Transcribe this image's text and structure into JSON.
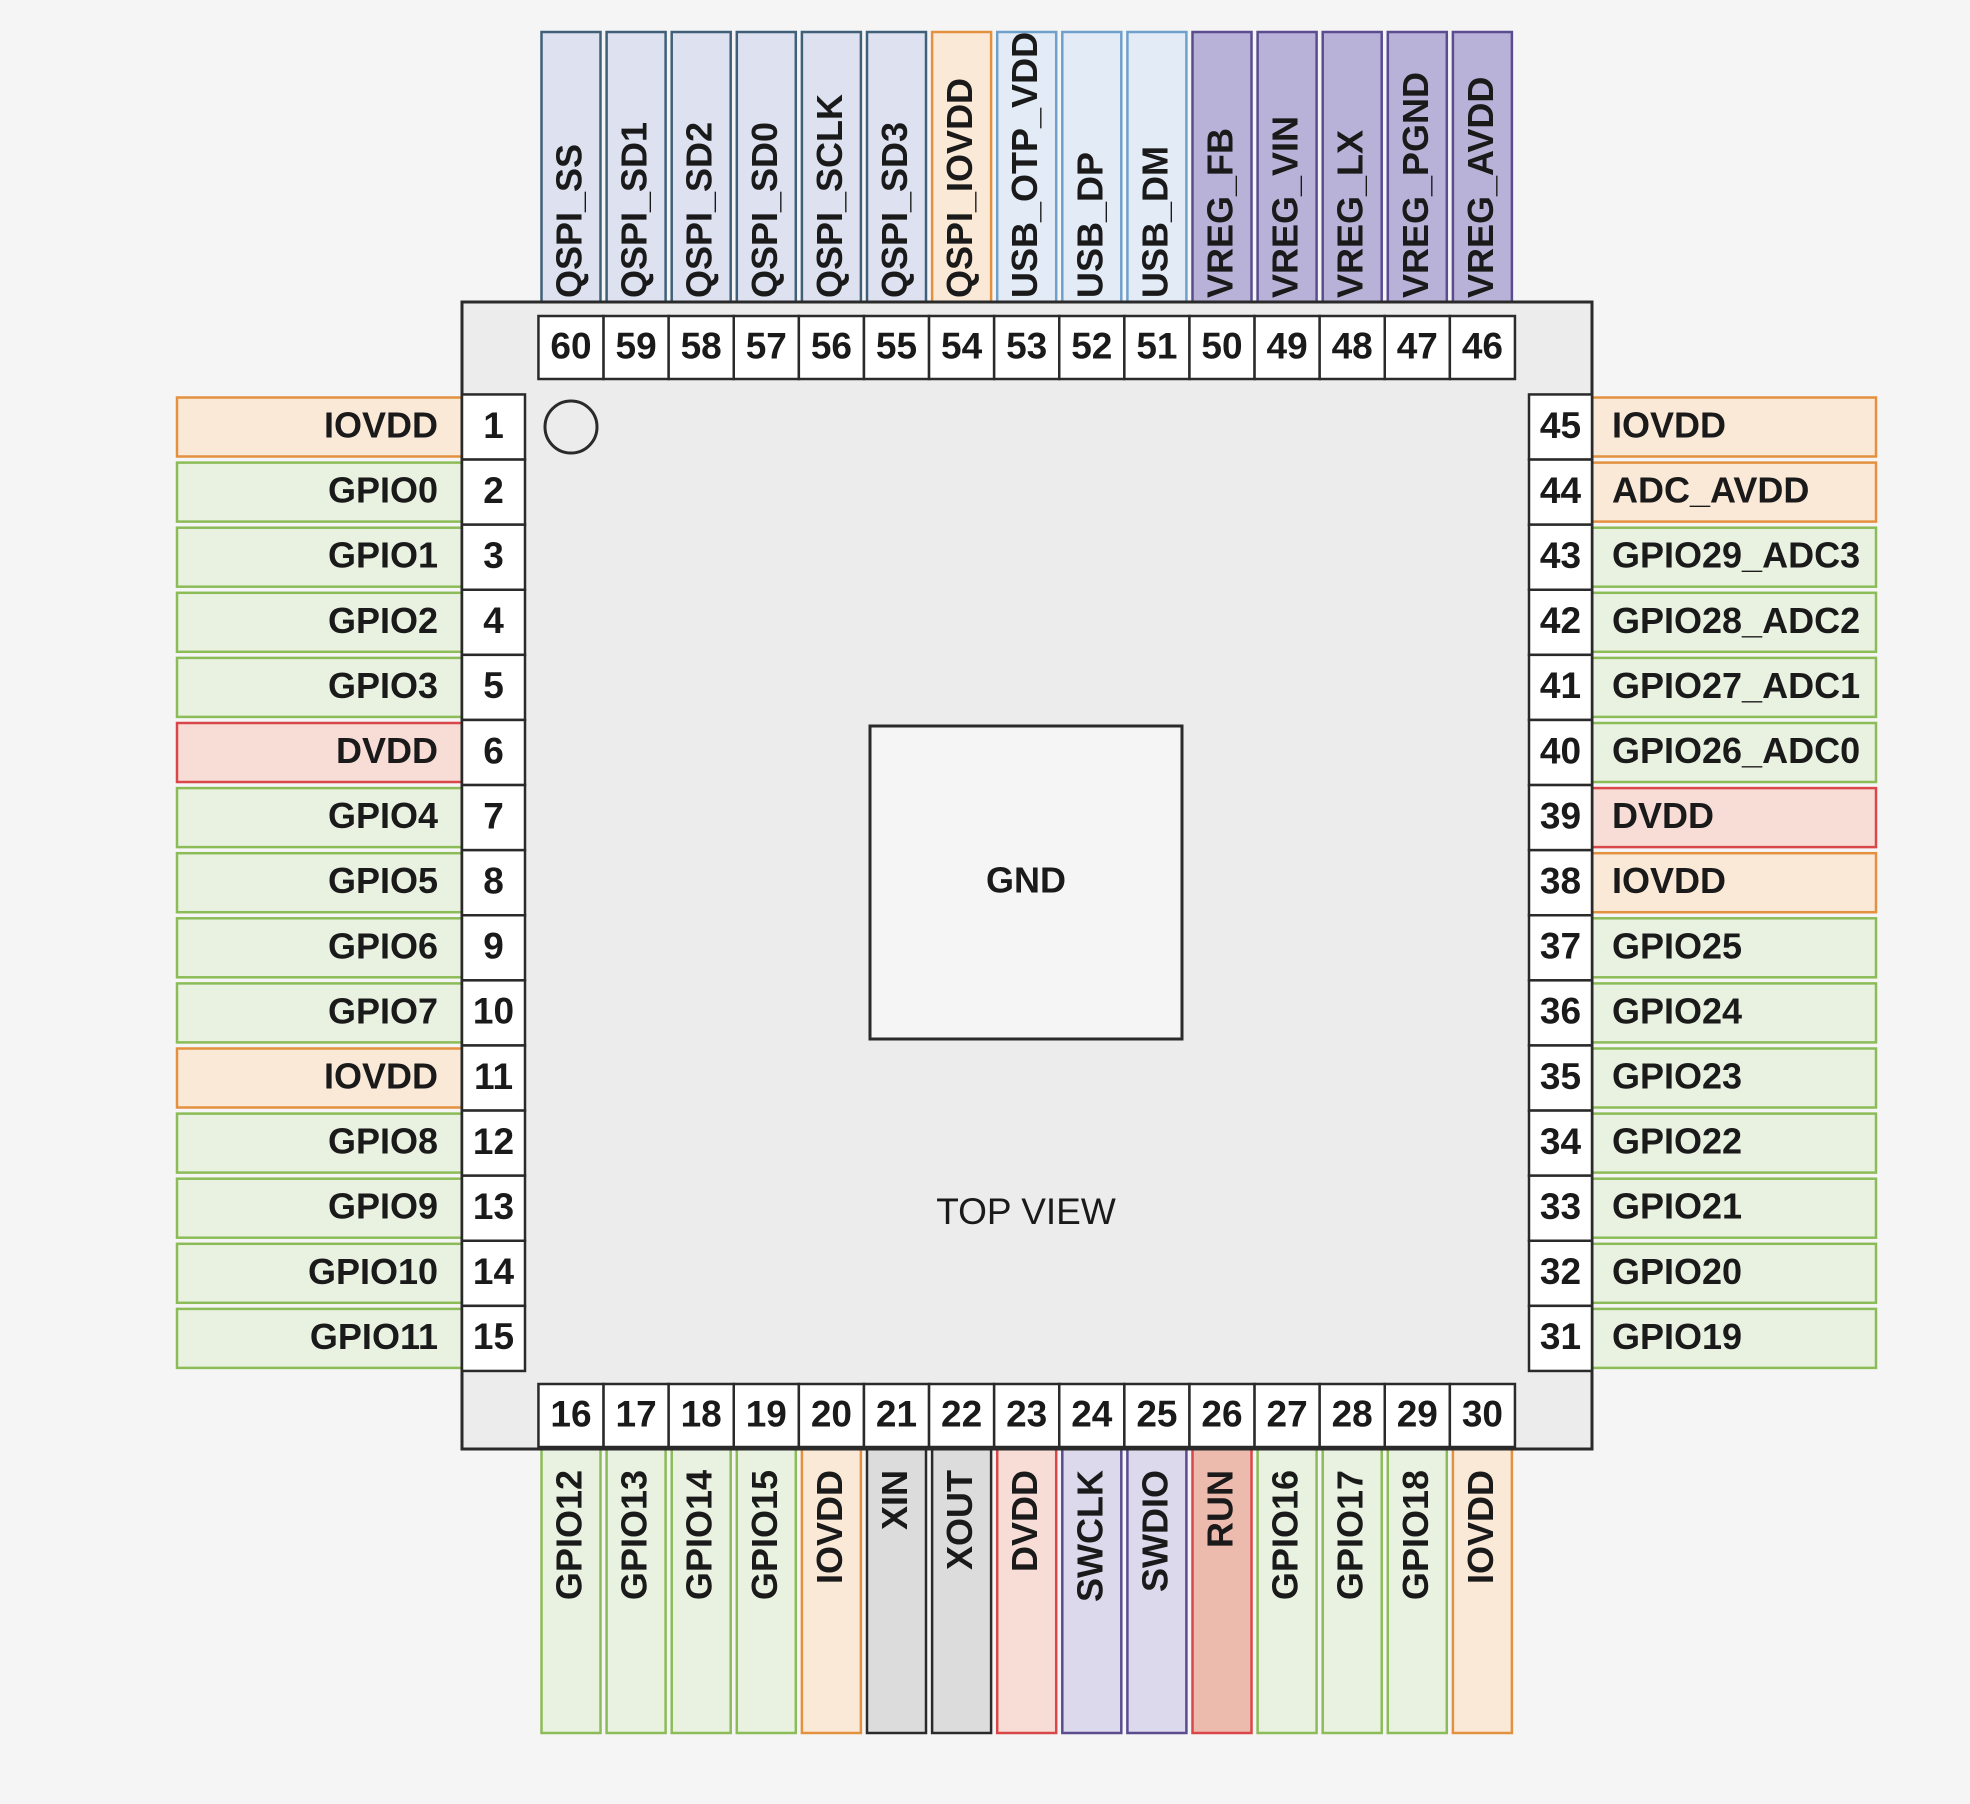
{
  "categories": {
    "qspi": {
      "fill": "#dde1f0",
      "stroke": "#3f6078"
    },
    "qspi_power": {
      "fill": "#fbe9d8",
      "stroke": "#e3913f"
    },
    "usb": {
      "fill": "#e3ebf6",
      "stroke": "#6fa0cc"
    },
    "vreg": {
      "fill": "#b9b2d8",
      "stroke": "#5a4c8f"
    },
    "gpio": {
      "fill": "#e9f2e1",
      "stroke": "#8cbc58"
    },
    "iovdd": {
      "fill": "#fbe9d8",
      "stroke": "#e3913f"
    },
    "dvdd": {
      "fill": "#f8ddd6",
      "stroke": "#d9474a"
    },
    "xtal": {
      "fill": "#dcdcdc",
      "stroke": "#2a2a2a"
    },
    "swd": {
      "fill": "#dcd9ec",
      "stroke": "#5a4c8f"
    },
    "run": {
      "fill": "#edbbae",
      "stroke": "#d9474a"
    }
  },
  "chip": {
    "body_fill": "#ececec",
    "outline": "#2a2a2a",
    "center_pad_label": "GND",
    "view_label": "TOP VIEW"
  },
  "pins": {
    "left": [
      {
        "num": "1",
        "label": "IOVDD",
        "cat": "iovdd"
      },
      {
        "num": "2",
        "label": "GPIO0",
        "cat": "gpio"
      },
      {
        "num": "3",
        "label": "GPIO1",
        "cat": "gpio"
      },
      {
        "num": "4",
        "label": "GPIO2",
        "cat": "gpio"
      },
      {
        "num": "5",
        "label": "GPIO3",
        "cat": "gpio"
      },
      {
        "num": "6",
        "label": "DVDD",
        "cat": "dvdd"
      },
      {
        "num": "7",
        "label": "GPIO4",
        "cat": "gpio"
      },
      {
        "num": "8",
        "label": "GPIO5",
        "cat": "gpio"
      },
      {
        "num": "9",
        "label": "GPIO6",
        "cat": "gpio"
      },
      {
        "num": "10",
        "label": "GPIO7",
        "cat": "gpio"
      },
      {
        "num": "11",
        "label": "IOVDD",
        "cat": "iovdd"
      },
      {
        "num": "12",
        "label": "GPIO8",
        "cat": "gpio"
      },
      {
        "num": "13",
        "label": "GPIO9",
        "cat": "gpio"
      },
      {
        "num": "14",
        "label": "GPIO10",
        "cat": "gpio"
      },
      {
        "num": "15",
        "label": "GPIO11",
        "cat": "gpio"
      }
    ],
    "bottom": [
      {
        "num": "16",
        "label": "GPIO12",
        "cat": "gpio"
      },
      {
        "num": "17",
        "label": "GPIO13",
        "cat": "gpio"
      },
      {
        "num": "18",
        "label": "GPIO14",
        "cat": "gpio"
      },
      {
        "num": "19",
        "label": "GPIO15",
        "cat": "gpio"
      },
      {
        "num": "20",
        "label": "IOVDD",
        "cat": "iovdd"
      },
      {
        "num": "21",
        "label": "XIN",
        "cat": "xtal"
      },
      {
        "num": "22",
        "label": "XOUT",
        "cat": "xtal"
      },
      {
        "num": "23",
        "label": "DVDD",
        "cat": "dvdd"
      },
      {
        "num": "24",
        "label": "SWCLK",
        "cat": "swd"
      },
      {
        "num": "25",
        "label": "SWDIO",
        "cat": "swd"
      },
      {
        "num": "26",
        "label": "RUN",
        "cat": "run"
      },
      {
        "num": "27",
        "label": "GPIO16",
        "cat": "gpio"
      },
      {
        "num": "28",
        "label": "GPIO17",
        "cat": "gpio"
      },
      {
        "num": "29",
        "label": "GPIO18",
        "cat": "gpio"
      },
      {
        "num": "30",
        "label": "IOVDD",
        "cat": "iovdd"
      }
    ],
    "right": [
      {
        "num": "45",
        "label": "IOVDD",
        "cat": "iovdd"
      },
      {
        "num": "44",
        "label": "ADC_AVDD",
        "cat": "iovdd"
      },
      {
        "num": "43",
        "label": "GPIO29_ADC3",
        "cat": "gpio"
      },
      {
        "num": "42",
        "label": "GPIO28_ADC2",
        "cat": "gpio"
      },
      {
        "num": "41",
        "label": "GPIO27_ADC1",
        "cat": "gpio"
      },
      {
        "num": "40",
        "label": "GPIO26_ADC0",
        "cat": "gpio"
      },
      {
        "num": "39",
        "label": "DVDD",
        "cat": "dvdd"
      },
      {
        "num": "38",
        "label": "IOVDD",
        "cat": "iovdd"
      },
      {
        "num": "37",
        "label": "GPIO25",
        "cat": "gpio"
      },
      {
        "num": "36",
        "label": "GPIO24",
        "cat": "gpio"
      },
      {
        "num": "35",
        "label": "GPIO23",
        "cat": "gpio"
      },
      {
        "num": "34",
        "label": "GPIO22",
        "cat": "gpio"
      },
      {
        "num": "33",
        "label": "GPIO21",
        "cat": "gpio"
      },
      {
        "num": "32",
        "label": "GPIO20",
        "cat": "gpio"
      },
      {
        "num": "31",
        "label": "GPIO19",
        "cat": "gpio"
      }
    ],
    "top": [
      {
        "num": "60",
        "label": "QSPI_SS",
        "cat": "qspi"
      },
      {
        "num": "59",
        "label": "QSPI_SD1",
        "cat": "qspi"
      },
      {
        "num": "58",
        "label": "QSPI_SD2",
        "cat": "qspi"
      },
      {
        "num": "57",
        "label": "QSPI_SD0",
        "cat": "qspi"
      },
      {
        "num": "56",
        "label": "QSPI_SCLK",
        "cat": "qspi"
      },
      {
        "num": "55",
        "label": "QSPI_SD3",
        "cat": "qspi"
      },
      {
        "num": "54",
        "label": "QSPI_IOVDD",
        "cat": "qspi_power"
      },
      {
        "num": "53",
        "label": "USB_OTP_VDD",
        "cat": "usb"
      },
      {
        "num": "52",
        "label": "USB_DP",
        "cat": "usb"
      },
      {
        "num": "51",
        "label": "USB_DM",
        "cat": "usb"
      },
      {
        "num": "50",
        "label": "VREG_FB",
        "cat": "vreg"
      },
      {
        "num": "49",
        "label": "VREG_VIN",
        "cat": "vreg"
      },
      {
        "num": "48",
        "label": "VREG_LX",
        "cat": "vreg"
      },
      {
        "num": "47",
        "label": "VREG_PGND",
        "cat": "vreg"
      },
      {
        "num": "46",
        "label": "VREG_AVDD",
        "cat": "vreg"
      }
    ]
  }
}
